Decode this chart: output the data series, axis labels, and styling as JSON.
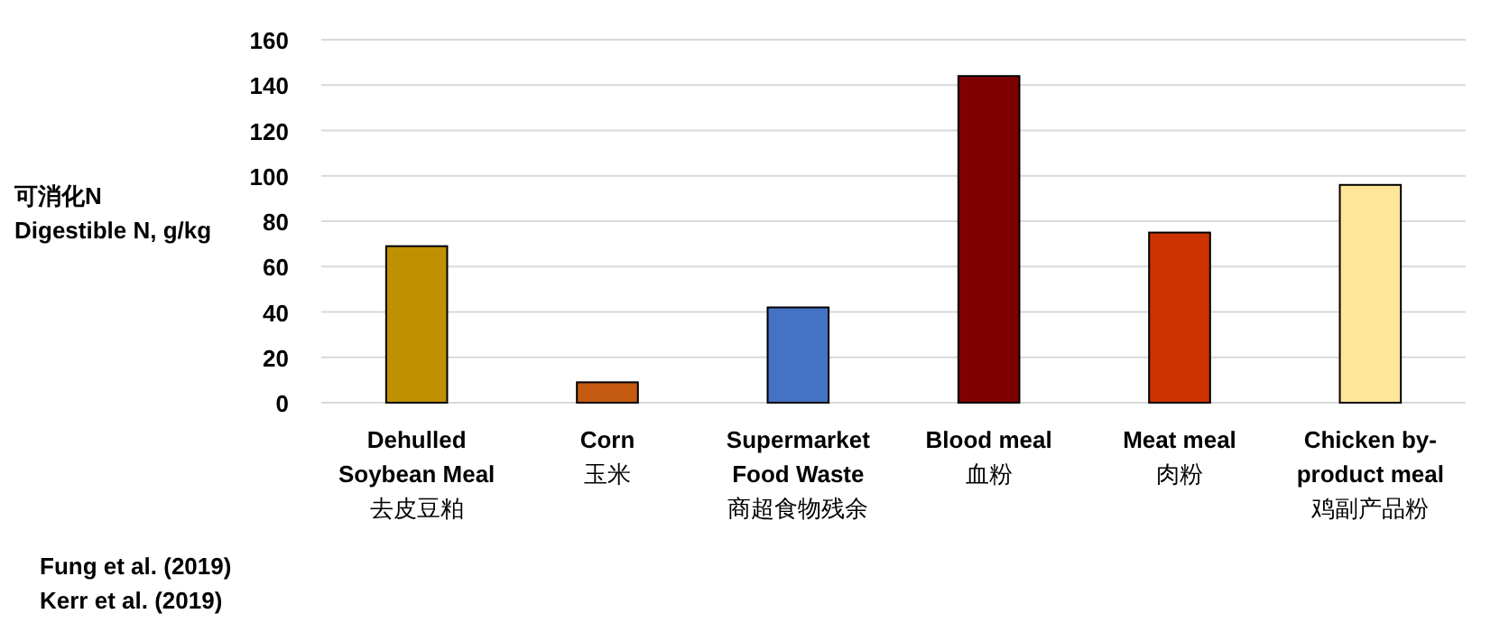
{
  "chart_data": {
    "type": "bar",
    "ylabel": "可消化N\nDigestible N, g/kg",
    "categories": [
      "Dehulled\nSoybean Meal\n去皮豆粕",
      "Corn\n玉米",
      "Supermarket\nFood Waste\n商超食物残余",
      "Blood meal\n血粉",
      "Meat meal\n肉粉",
      "Chicken by-\nproduct meal\n鸡副产品粉"
    ],
    "values": [
      69,
      9,
      42,
      144,
      75,
      96
    ],
    "colors": [
      "#bf9000",
      "#c55a11",
      "#4472c4",
      "#7f0000",
      "#cc3300",
      "#ffe699"
    ],
    "ylim": [
      0,
      160
    ],
    "yticks": [
      0,
      20,
      40,
      60,
      80,
      100,
      120,
      140,
      160
    ],
    "grid": "y",
    "annotations": [
      "Fung et al. (2019)",
      "Kerr et al. (2019)"
    ]
  }
}
